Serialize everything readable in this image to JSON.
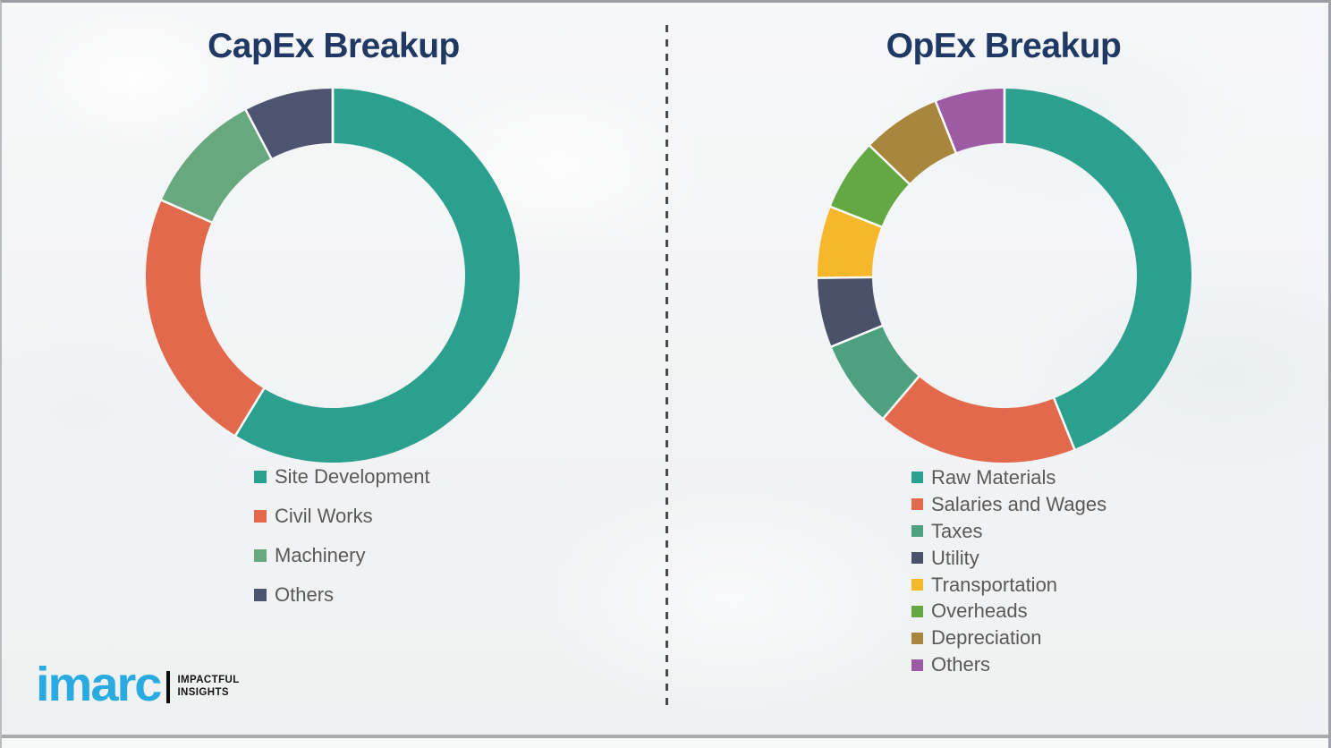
{
  "theme": {
    "title_color": "#1F3864",
    "legend_text_color": "#595959",
    "divider_dash_color": "#4A4A4A",
    "background_color": "#F3F4F5",
    "segment_separator_color": "#FFFFFF"
  },
  "logo": {
    "brand": "imarc",
    "brand_color": "#29ABE2",
    "tagline_line1": "IMPACTFUL",
    "tagline_line2": "INSIGHTS"
  },
  "chart_data": [
    {
      "type": "pie",
      "subtype": "donut",
      "title": "CapEx Breakup",
      "labels": [
        "Site Development",
        "Civil Works",
        "Machinery",
        "Others"
      ],
      "values": [
        58.7,
        22.9,
        10.7,
        7.7
      ],
      "colors": [
        "#2BA08F",
        "#E2694B",
        "#68A87E",
        "#4D5470"
      ],
      "start_angle_deg": 0,
      "direction": "clockwise",
      "legend_position": "below-left",
      "data_labels_shown": false,
      "values_note": "percent shares estimated from arc angles; no numeric labels shown in image"
    },
    {
      "type": "pie",
      "subtype": "donut",
      "title": "OpEx Breakup",
      "labels": [
        "Raw Materials",
        "Salaries and Wages",
        "Taxes",
        "Utility",
        "Transportation",
        "Overheads",
        "Depreciation",
        "Others"
      ],
      "values": [
        43.9,
        17.3,
        7.6,
        6.0,
        6.2,
        6.2,
        6.8,
        6.0
      ],
      "colors": [
        "#2BA08F",
        "#E2694B",
        "#4DA181",
        "#4A5169",
        "#F7B72B",
        "#64A844",
        "#A8873D",
        "#9D5BA4"
      ],
      "start_angle_deg": 0,
      "direction": "clockwise",
      "legend_position": "below-left",
      "data_labels_shown": false,
      "values_note": "percent shares estimated from arc angles; no numeric labels shown in image"
    }
  ]
}
